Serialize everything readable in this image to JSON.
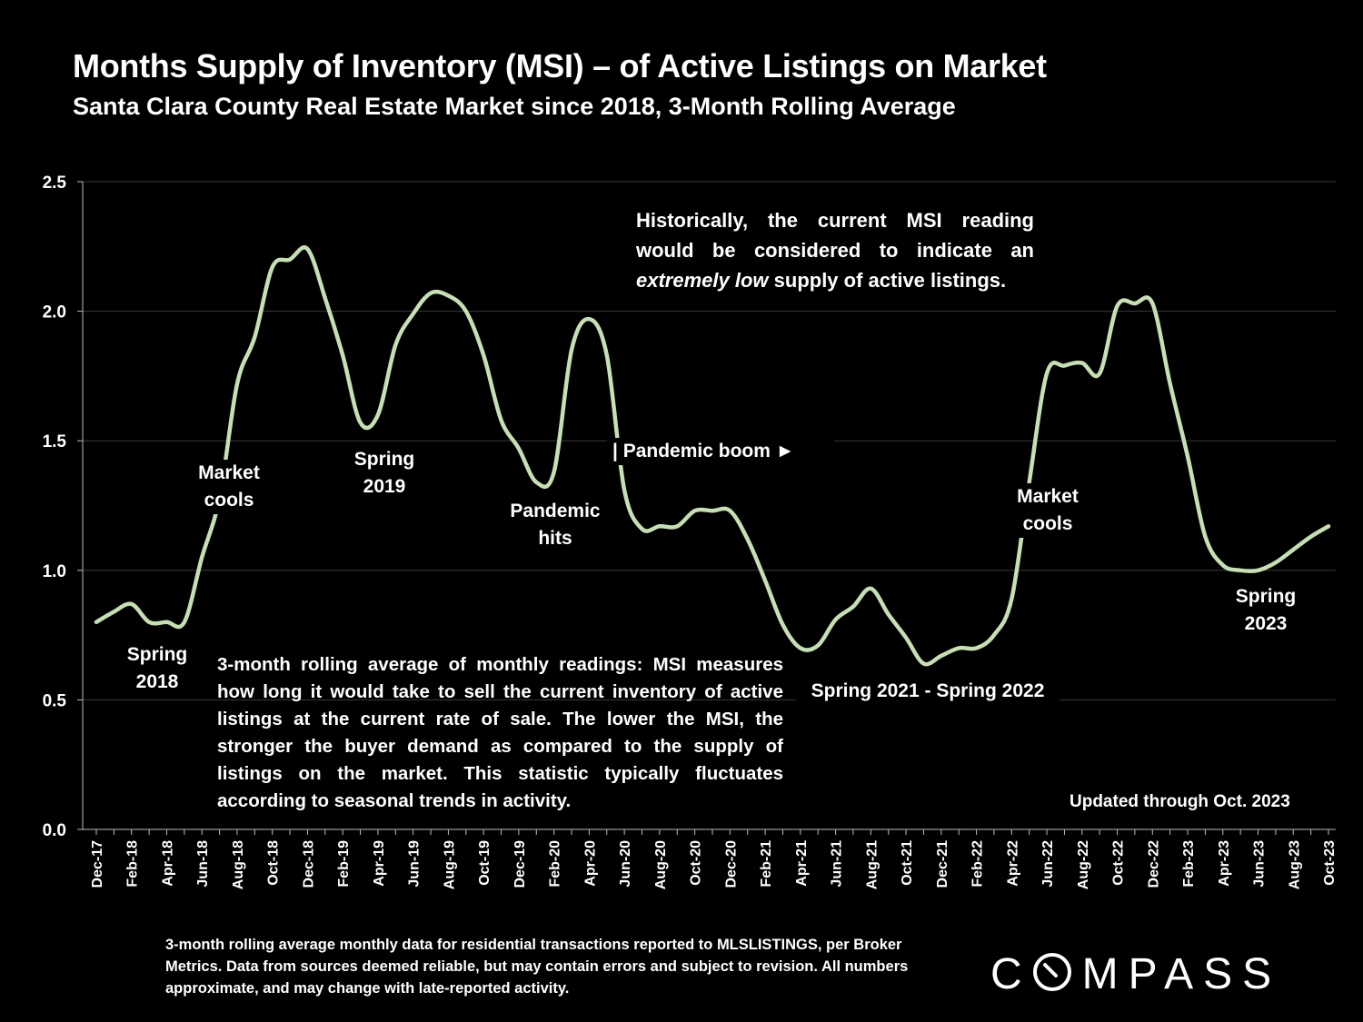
{
  "header": {
    "title": "Months Supply of Inventory (MSI) – of Active Listings on Market",
    "subtitle": "Santa Clara County Real Estate Market since 2018, 3-Month Rolling Average"
  },
  "chart_data": {
    "type": "line",
    "title": "Months Supply of Inventory (MSI) – of Active Listings on Market",
    "subtitle": "Santa Clara County Real Estate Market since 2018, 3-Month Rolling Average",
    "xlabel": "",
    "ylabel": "",
    "ylim": [
      0,
      2.5
    ],
    "y_ticks": [
      "0.0",
      "0.5",
      "1.0",
      "1.5",
      "2.0",
      "2.5"
    ],
    "grid": true,
    "line_color": "#c6dfb4",
    "x_tick_labels": [
      "Dec-17",
      "Feb-18",
      "Apr-18",
      "Jun-18",
      "Aug-18",
      "Oct-18",
      "Dec-18",
      "Feb-19",
      "Apr-19",
      "Jun-19",
      "Aug-19",
      "Oct-19",
      "Dec-19",
      "Feb-20",
      "Apr-20",
      "Jun-20",
      "Aug-20",
      "Oct-20",
      "Dec-20",
      "Feb-21",
      "Apr-21",
      "Jun-21",
      "Aug-21",
      "Oct-21",
      "Dec-21",
      "Feb-22",
      "Apr-22",
      "Jun-22",
      "Aug-22",
      "Oct-22",
      "Dec-22",
      "Feb-23",
      "Apr-23",
      "Jun-23",
      "Aug-23",
      "Oct-23"
    ],
    "series": [
      {
        "name": "MSI 3-month rolling average",
        "x": [
          "Dec-17",
          "Jan-18",
          "Feb-18",
          "Mar-18",
          "Apr-18",
          "May-18",
          "Jun-18",
          "Jul-18",
          "Aug-18",
          "Sep-18",
          "Oct-18",
          "Nov-18",
          "Dec-18",
          "Jan-19",
          "Feb-19",
          "Mar-19",
          "Apr-19",
          "May-19",
          "Jun-19",
          "Jul-19",
          "Aug-19",
          "Sep-19",
          "Oct-19",
          "Nov-19",
          "Dec-19",
          "Jan-20",
          "Feb-20",
          "Mar-20",
          "Apr-20",
          "May-20",
          "Jun-20",
          "Jul-20",
          "Aug-20",
          "Sep-20",
          "Oct-20",
          "Nov-20",
          "Dec-20",
          "Jan-21",
          "Feb-21",
          "Mar-21",
          "Apr-21",
          "May-21",
          "Jun-21",
          "Jul-21",
          "Aug-21",
          "Sep-21",
          "Oct-21",
          "Nov-21",
          "Dec-21",
          "Jan-22",
          "Feb-22",
          "Mar-22",
          "Apr-22",
          "May-22",
          "Jun-22",
          "Jul-22",
          "Aug-22",
          "Sep-22",
          "Oct-22",
          "Nov-22",
          "Dec-22",
          "Jan-23",
          "Feb-23",
          "Mar-23",
          "Apr-23",
          "May-23",
          "Jun-23",
          "Jul-23",
          "Aug-23",
          "Sep-23",
          "Oct-23"
        ],
        "values": [
          0.8,
          0.84,
          0.87,
          0.8,
          0.8,
          0.8,
          1.05,
          1.28,
          1.72,
          1.9,
          2.17,
          2.2,
          2.24,
          2.05,
          1.83,
          1.57,
          1.6,
          1.87,
          1.99,
          2.07,
          2.06,
          2.0,
          1.83,
          1.58,
          1.47,
          1.34,
          1.38,
          1.85,
          1.97,
          1.83,
          1.31,
          1.16,
          1.17,
          1.17,
          1.23,
          1.23,
          1.23,
          1.12,
          0.96,
          0.79,
          0.7,
          0.71,
          0.81,
          0.86,
          0.93,
          0.83,
          0.74,
          0.64,
          0.67,
          0.7,
          0.7,
          0.75,
          0.89,
          1.34,
          1.76,
          1.79,
          1.8,
          1.76,
          2.02,
          2.03,
          2.03,
          1.72,
          1.44,
          1.13,
          1.02,
          1.0,
          1.0,
          1.03,
          1.08,
          1.13,
          1.17
        ]
      }
    ],
    "annotations": {
      "spring_2018": [
        "Spring",
        "2018"
      ],
      "market_cools_1": [
        "Market",
        "cools"
      ],
      "spring_2019": [
        "Spring",
        "2019"
      ],
      "pandemic_hits": [
        "Pandemic",
        "hits"
      ],
      "pandemic_boom": "| Pandemic boom ►",
      "spring_2021_2022": "Spring 2021 - Spring 2022",
      "market_cools_2": [
        "Market",
        "cools"
      ],
      "spring_2023": [
        "Spring",
        "2023"
      ]
    },
    "historical_note": {
      "part1": "Historically, the current MSI reading would be considered to indicate an",
      "emphasis": "extremely low",
      "part2": "supply of active listings."
    },
    "definition_note": "3-month rolling average of monthly readings: MSI measures how long it would take to sell the current inventory of active listings at the current rate of sale. The lower the MSI, the stronger the buyer demand as compared to the supply of listings on the market. This statistic typically fluctuates according to seasonal trends in activity.",
    "updated_note": "Updated through Oct. 2023"
  },
  "footer": {
    "footnote": "3-month rolling average monthly data for residential transactions reported to MLSLISTINGS, per Broker Metrics. Data from sources deemed reliable, but may contain errors and subject to revision. All numbers approximate, and may change with late-reported activity.",
    "logo_before": "C",
    "logo_after": "MPASS"
  }
}
